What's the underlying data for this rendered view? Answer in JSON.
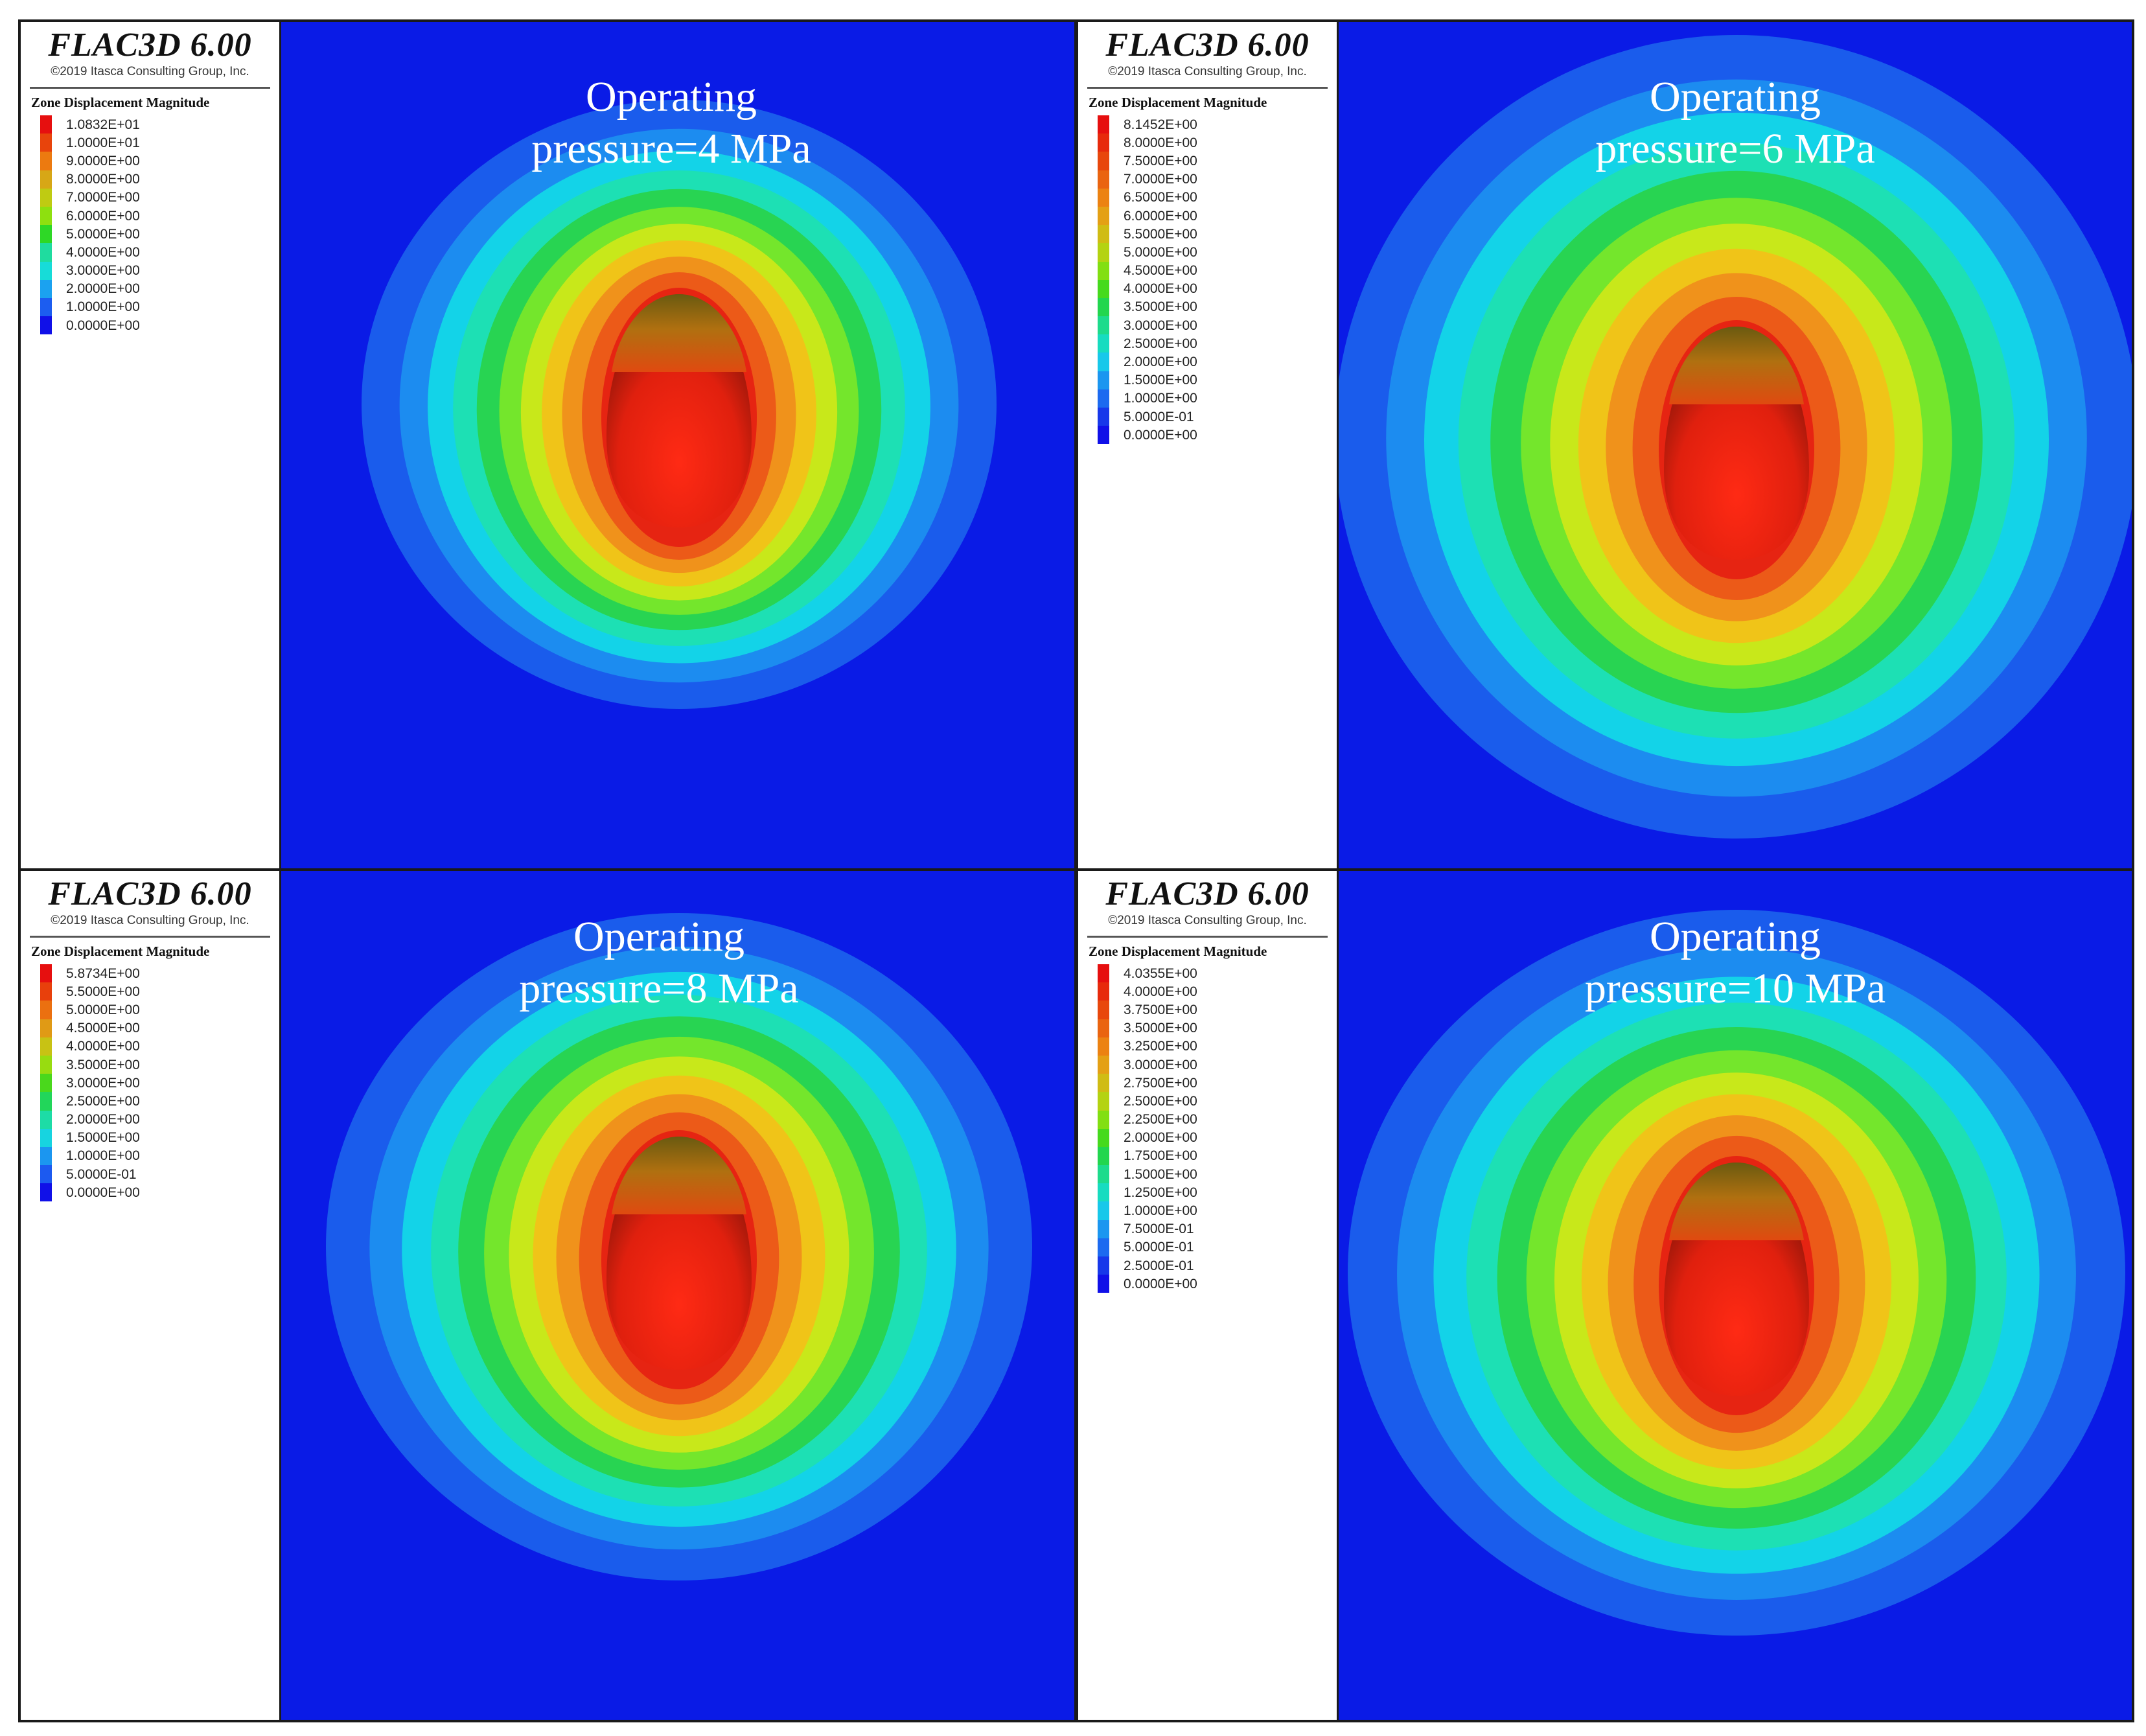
{
  "colors": {
    "background_field": "#0a1be6",
    "contour_palette": [
      "#0a1be6",
      "#1a5cec",
      "#1c8cf0",
      "#13d3e8",
      "#1de0b4",
      "#28d452",
      "#74e62c",
      "#c8e81a",
      "#f0c418",
      "#f0921b",
      "#ec5a18",
      "#e62412"
    ]
  },
  "panels": [
    {
      "brand": "FLAC3D 6.00",
      "copyright": "©2019 Itasca Consulting Group, Inc.",
      "legend_title": "Zone Displacement Magnitude",
      "legend_values": [
        "1.0832E+01",
        "1.0000E+01",
        "9.0000E+00",
        "8.0000E+00",
        "7.0000E+00",
        "6.0000E+00",
        "5.0000E+00",
        "4.0000E+00",
        "3.0000E+00",
        "2.0000E+00",
        "1.0000E+00",
        "0.0000E+00"
      ],
      "legend_colors": [
        "#e60f0f",
        "#e8440c",
        "#ec7a10",
        "#d7a716",
        "#bfcb12",
        "#8ee00f",
        "#2ed826",
        "#1fdc9f",
        "#17dcd8",
        "#1ba2f0",
        "#1c5df0",
        "#1010e8"
      ],
      "caption_line1": "Operating",
      "caption_line2": "pressure=4 MPa"
    },
    {
      "brand": "FLAC3D 6.00",
      "copyright": "©2019 Itasca Consulting Group, Inc.",
      "legend_title": "Zone Displacement Magnitude",
      "legend_values": [
        "8.1452E+00",
        "8.0000E+00",
        "7.5000E+00",
        "7.0000E+00",
        "6.5000E+00",
        "6.0000E+00",
        "5.5000E+00",
        "5.0000E+00",
        "4.5000E+00",
        "4.0000E+00",
        "3.5000E+00",
        "3.0000E+00",
        "2.5000E+00",
        "2.0000E+00",
        "1.5000E+00",
        "1.0000E+00",
        "5.0000E-01",
        "0.0000E+00"
      ],
      "legend_colors": [
        "#e60f0f",
        "#e72a0c",
        "#e8470c",
        "#ea6410",
        "#ec8212",
        "#e4a015",
        "#d0bc14",
        "#b4d312",
        "#82df12",
        "#46da1d",
        "#22d64e",
        "#1ddb8c",
        "#17dcc0",
        "#18c8ea",
        "#1b96f0",
        "#1c6af0",
        "#1738ea",
        "#1010e8"
      ],
      "caption_line1": "Operating",
      "caption_line2": "pressure=6 MPa"
    },
    {
      "brand": "FLAC3D 6.00",
      "copyright": "©2019 Itasca Consulting Group, Inc.",
      "legend_title": "Zone Displacement Magnitude",
      "legend_values": [
        "5.8734E+00",
        "5.5000E+00",
        "5.0000E+00",
        "4.5000E+00",
        "4.0000E+00",
        "3.5000E+00",
        "3.0000E+00",
        "2.5000E+00",
        "2.0000E+00",
        "1.5000E+00",
        "1.0000E+00",
        "5.0000E-01",
        "0.0000E+00"
      ],
      "legend_colors": [
        "#e60f0f",
        "#e8400c",
        "#eb7010",
        "#e09a15",
        "#c8c214",
        "#98dc10",
        "#4ad81c",
        "#22d65a",
        "#1ddca6",
        "#17d4e0",
        "#1b96f0",
        "#1c5af0",
        "#1010e8"
      ],
      "caption_line1": "Operating",
      "caption_line2": "pressure=8 MPa"
    },
    {
      "brand": "FLAC3D 6.00",
      "copyright": "©2019 Itasca Consulting Group, Inc.",
      "legend_title": "Zone Displacement Magnitude",
      "legend_values": [
        "4.0355E+00",
        "4.0000E+00",
        "3.7500E+00",
        "3.5000E+00",
        "3.2500E+00",
        "3.0000E+00",
        "2.7500E+00",
        "2.5000E+00",
        "2.2500E+00",
        "2.0000E+00",
        "1.7500E+00",
        "1.5000E+00",
        "1.2500E+00",
        "1.0000E+00",
        "7.5000E-01",
        "5.0000E-01",
        "2.5000E-01",
        "0.0000E+00"
      ],
      "legend_colors": [
        "#e60f0f",
        "#e72a0c",
        "#e8470c",
        "#ea6410",
        "#ec8212",
        "#e4a015",
        "#d0bc14",
        "#b4d312",
        "#82df12",
        "#46da1d",
        "#22d64e",
        "#1ddb8c",
        "#17dcc0",
        "#18c8ea",
        "#1b96f0",
        "#1c6af0",
        "#1738ea",
        "#1010e8"
      ],
      "caption_line1": "Operating",
      "caption_line2": "pressure=10 MPa"
    }
  ]
}
